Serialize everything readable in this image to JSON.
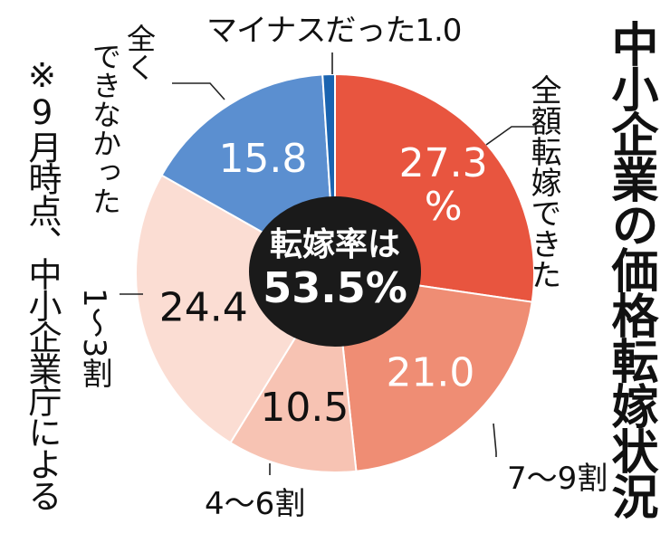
{
  "title": "中小企業の価格転嫁状況",
  "note": "※9月時点、中小企業庁による",
  "center_label": [
    "転嫁率は",
    "53.5%"
  ],
  "chart_data": {
    "type": "pie",
    "title": "中小企業の価格転嫁状況",
    "total_label": "転嫁率は53.5%",
    "slices": [
      {
        "label": "全額転嫁できた",
        "value": 27.3,
        "value_label": "27.3%",
        "color": "#e8553f"
      },
      {
        "label": "7～9割",
        "value": 21.0,
        "value_label": "21.0",
        "color": "#ef8d74"
      },
      {
        "label": "4～6割",
        "value": 10.5,
        "value_label": "10.5",
        "color": "#f7c3b3"
      },
      {
        "label": "1～3割",
        "value": 24.4,
        "value_label": "24.4",
        "color": "#fbddd3"
      },
      {
        "label": "全くできなかった",
        "value": 15.8,
        "value_label": "15.8",
        "color": "#5b8fd0"
      },
      {
        "label": "マイナスだった",
        "value": 1.0,
        "value_label": "1.0",
        "color": "#1a64b0"
      }
    ]
  }
}
